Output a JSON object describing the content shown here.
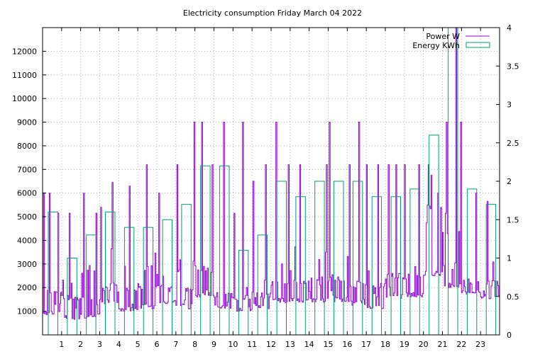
{
  "chart_data": {
    "type": "line",
    "title": "Electricity consumption Friday March 04 2022",
    "xlabel": "",
    "ylabel": "",
    "y2label": "",
    "x_ticks": [
      "1",
      "2",
      "3",
      "4",
      "5",
      "6",
      "7",
      "8",
      "9",
      "10",
      "11",
      "12",
      "13",
      "14",
      "15",
      "16",
      "17",
      "18",
      "19",
      "20",
      "21",
      "22",
      "23"
    ],
    "xlim": [
      0,
      24
    ],
    "ylim": [
      0,
      13000
    ],
    "y_ticks": [
      "1000",
      "2000",
      "3000",
      "4000",
      "5000",
      "6000",
      "7000",
      "8000",
      "9000",
      "10000",
      "11000",
      "12000"
    ],
    "y2lim": [
      0,
      4
    ],
    "y2_ticks": [
      "0",
      "0.5",
      "1",
      "1.5",
      "2",
      "2.5",
      "3",
      "3.5",
      "4"
    ],
    "grid": true,
    "legend_position": "top-right",
    "series": [
      {
        "name": "Power W",
        "axis": "y1",
        "style": "line",
        "color": "#9400d3",
        "hourly_baseline_W": [
          800,
          650,
          700,
          1300,
          1000,
          1100,
          1300,
          1100,
          1600,
          1100,
          1000,
          1050,
          1350,
          1350,
          1350,
          1400,
          1250,
          1100,
          1500,
          1600,
          2500,
          2000,
          1700,
          1500
        ],
        "hourly_upper_W": [
          1900,
          1700,
          1800,
          2200,
          2100,
          2200,
          2100,
          2000,
          2900,
          1800,
          1700,
          1800,
          2300,
          2400,
          2500,
          2500,
          2300,
          2200,
          2600,
          2600,
          5500,
          4500,
          2400,
          2300
        ],
        "spikes": [
          {
            "x": 0.05,
            "y": 6000
          },
          {
            "x": 0.35,
            "y": 6000
          },
          {
            "x": 0.8,
            "y": 5150
          },
          {
            "x": 1.4,
            "y": 5150
          },
          {
            "x": 2.15,
            "y": 6000
          },
          {
            "x": 2.8,
            "y": 5150
          },
          {
            "x": 3.05,
            "y": 5400
          },
          {
            "x": 3.65,
            "y": 6450
          },
          {
            "x": 4.55,
            "y": 6300
          },
          {
            "x": 5.45,
            "y": 7200
          },
          {
            "x": 6.1,
            "y": 6000
          },
          {
            "x": 7.05,
            "y": 7200
          },
          {
            "x": 7.95,
            "y": 9000
          },
          {
            "x": 8.35,
            "y": 9000
          },
          {
            "x": 8.9,
            "y": 7200
          },
          {
            "x": 9.5,
            "y": 9000
          },
          {
            "x": 10.05,
            "y": 5150
          },
          {
            "x": 10.5,
            "y": 9000
          },
          {
            "x": 11.05,
            "y": 6500
          },
          {
            "x": 11.7,
            "y": 7200
          },
          {
            "x": 12.25,
            "y": 9000
          },
          {
            "x": 12.9,
            "y": 7200
          },
          {
            "x": 13.5,
            "y": 7200
          },
          {
            "x": 14.9,
            "y": 7200
          },
          {
            "x": 15.05,
            "y": 9000
          },
          {
            "x": 16.1,
            "y": 7200
          },
          {
            "x": 16.6,
            "y": 9000
          },
          {
            "x": 17.0,
            "y": 7200
          },
          {
            "x": 17.6,
            "y": 7200
          },
          {
            "x": 18.15,
            "y": 7200
          },
          {
            "x": 18.55,
            "y": 7200
          },
          {
            "x": 19.0,
            "y": 7200
          },
          {
            "x": 19.75,
            "y": 7200
          },
          {
            "x": 20.25,
            "y": 7200
          },
          {
            "x": 20.75,
            "y": 6000
          },
          {
            "x": 21.2,
            "y": 9000
          },
          {
            "x": 21.7,
            "y": 13000
          },
          {
            "x": 21.95,
            "y": 9000
          },
          {
            "x": 22.75,
            "y": 6000
          },
          {
            "x": 23.35,
            "y": 5650
          }
        ]
      },
      {
        "name": "Energy KWh",
        "axis": "y2",
        "style": "steps",
        "color": "#009e73",
        "x": [
          0,
          1,
          2,
          3,
          4,
          5,
          6,
          7,
          8,
          9,
          10,
          11,
          12,
          13,
          14,
          15,
          16,
          17,
          18,
          19,
          20,
          21,
          22,
          23
        ],
        "values": [
          1.6,
          1.0,
          1.3,
          1.6,
          1.4,
          1.4,
          1.5,
          1.7,
          2.2,
          2.2,
          1.1,
          1.3,
          2.0,
          1.8,
          2.0,
          2.0,
          2.0,
          1.8,
          1.8,
          1.9,
          2.6,
          4.0,
          1.9,
          1.7
        ]
      }
    ]
  }
}
